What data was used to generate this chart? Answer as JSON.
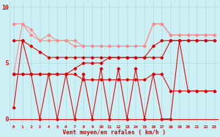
{
  "x": [
    0,
    1,
    2,
    3,
    4,
    5,
    6,
    7,
    8,
    9,
    10,
    11,
    12,
    13,
    14,
    15,
    16,
    17,
    18,
    19,
    20,
    21,
    22,
    23
  ],
  "line_light1": [
    8.5,
    8.5,
    7.5,
    7.0,
    7.0,
    7.0,
    7.0,
    6.5,
    6.5,
    6.5,
    6.5,
    6.5,
    6.5,
    6.5,
    6.5,
    6.5,
    8.5,
    8.5,
    7.5,
    7.5,
    7.5,
    7.5,
    7.5,
    7.5
  ],
  "line_light2": [
    4.0,
    8.5,
    8.0,
    7.0,
    7.5,
    7.0,
    7.0,
    7.0,
    6.5,
    6.5,
    6.5,
    6.5,
    6.5,
    6.5,
    6.5,
    6.5,
    8.5,
    8.5,
    7.5,
    7.5,
    7.5,
    7.5,
    7.5,
    7.5
  ],
  "line1": [
    7.0,
    7.0,
    6.5,
    6.0,
    5.5,
    5.5,
    5.5,
    5.5,
    5.5,
    5.5,
    5.5,
    5.5,
    5.5,
    5.5,
    5.5,
    5.5,
    6.5,
    7.0,
    7.0,
    7.0,
    7.0,
    7.0,
    7.0,
    7.0
  ],
  "line2": [
    4.0,
    4.0,
    4.0,
    4.0,
    4.0,
    4.0,
    4.0,
    4.5,
    5.0,
    5.0,
    5.0,
    5.5,
    5.5,
    5.5,
    5.5,
    5.5,
    5.5,
    5.5,
    7.0,
    7.0,
    7.0,
    7.0,
    7.0,
    7.0
  ],
  "line3": [
    4.0,
    4.0,
    4.0,
    4.0,
    4.0,
    4.0,
    4.0,
    4.0,
    3.5,
    3.5,
    3.5,
    3.5,
    3.5,
    3.5,
    3.5,
    3.5,
    4.0,
    4.0,
    2.5,
    2.5,
    2.5,
    2.5,
    2.5,
    2.5
  ],
  "line4": [
    1.0,
    7.0,
    4.0,
    0.0,
    4.0,
    0.0,
    4.0,
    0.0,
    4.0,
    0.0,
    4.5,
    0.0,
    4.5,
    0.0,
    4.5,
    0.0,
    4.0,
    0.0,
    0.0,
    7.0,
    2.5,
    2.5,
    2.5,
    2.5
  ],
  "bg_color": "#cceef5",
  "grid_color": "#aadddd",
  "dark_red": "#dd0000",
  "light_red": "#ff8888",
  "xlabel": "Vent moyen/en rafales ( km/h )",
  "yticks": [
    0,
    5,
    10
  ],
  "ylim": [
    -0.5,
    10.5
  ],
  "xlim": [
    -0.5,
    23.5
  ],
  "wind_arrows": [
    "↓",
    "↘",
    "↙",
    "↓",
    "↓",
    "↓",
    "↓",
    "↓",
    "↙",
    "↓",
    "↙",
    "↓",
    "↙",
    "↗",
    "↓",
    "↙",
    "↙",
    "↓",
    "↓",
    "↘",
    "↗",
    "↓",
    "↘",
    "↓"
  ]
}
